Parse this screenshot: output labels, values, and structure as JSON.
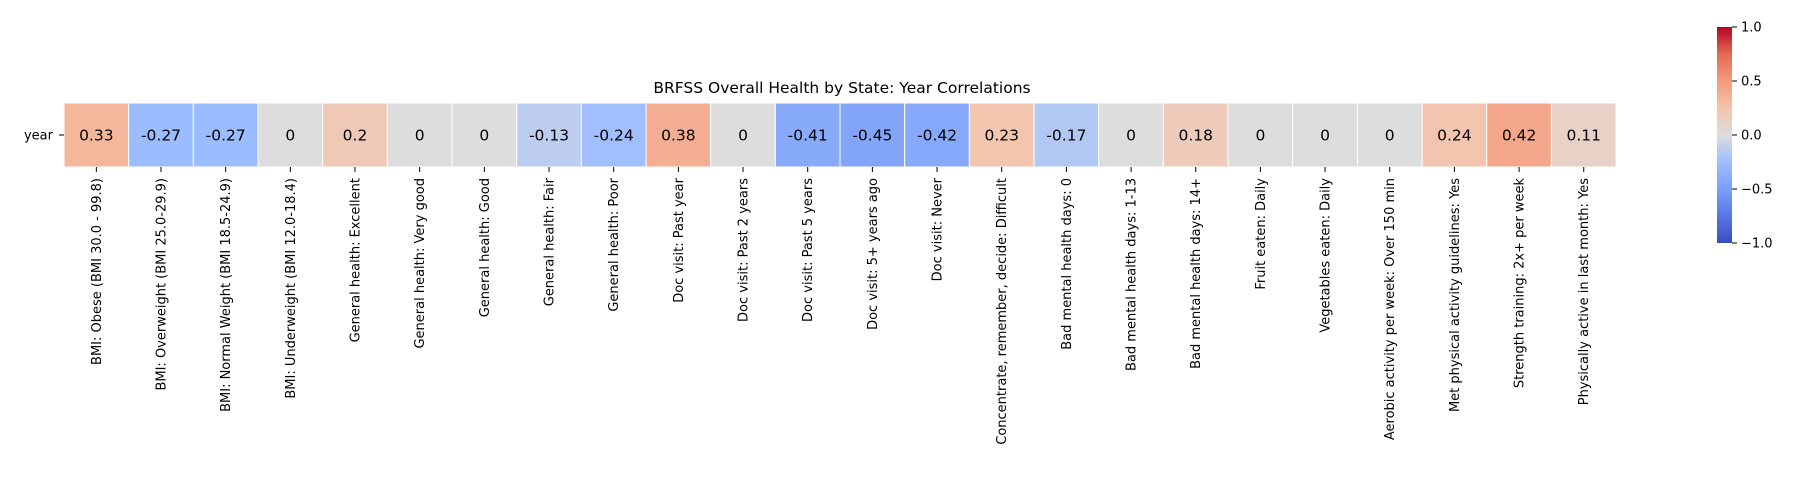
{
  "chart_data": {
    "type": "heatmap",
    "title": "BRFSS Overall Health by State: Year Correlations",
    "row_labels": [
      "year"
    ],
    "categories": [
      "BMI: Obese (BMI 30.0 - 99.8)",
      "BMI: Overweight (BMI 25.0-29.9)",
      "BMI: Normal Weight (BMI 18.5-24.9)",
      "BMI: Underweight (BMI 12.0-18.4)",
      "General health: Excellent",
      "General health: Very good",
      "General health: Good",
      "General health: Fair",
      "General health: Poor",
      "Doc visit: Past year",
      "Doc visit: Past 2 years",
      "Doc visit: Past 5 years",
      "Doc visit: 5+ years ago",
      "Doc visit: Never",
      "Concentrate, remember, decide: Difficult",
      "Bad mental health days: 0",
      "Bad mental health days: 1-13",
      "Bad mental health days: 14+",
      "Fruit eaten: Daily",
      "Vegetables eaten: Daily",
      "Aerobic activity per week: Over 150 min",
      "Met physical activity guidelines: Yes",
      "Strength training: 2x+ per week",
      "Physically active in last month: Yes"
    ],
    "values": [
      0.33,
      -0.27,
      -0.27,
      0,
      0.2,
      0,
      0,
      -0.13,
      -0.24,
      0.38,
      0,
      -0.41,
      -0.45,
      -0.42,
      0.23,
      -0.17,
      0,
      0.18,
      0,
      0,
      0,
      0.24,
      0.42,
      0.11
    ],
    "labels": [
      "0.33",
      "-0.27",
      "-0.27",
      "0",
      "0.2",
      "0",
      "0",
      "-0.13",
      "-0.24",
      "0.38",
      "0",
      "-0.41",
      "-0.45",
      "-0.42",
      "0.23",
      "-0.17",
      "0",
      "0.18",
      "0",
      "0",
      "0",
      "0.24",
      "0.42",
      "0.11"
    ],
    "colormap": "coolwarm",
    "vmin": -1.0,
    "vmax": 1.0,
    "colorbar_ticks": [
      1.0,
      0.5,
      0.0,
      -0.5,
      -1.0
    ],
    "colorbar_tick_labels": [
      "1.0",
      "0.5",
      "0.0",
      "−0.5",
      "−1.0"
    ]
  }
}
